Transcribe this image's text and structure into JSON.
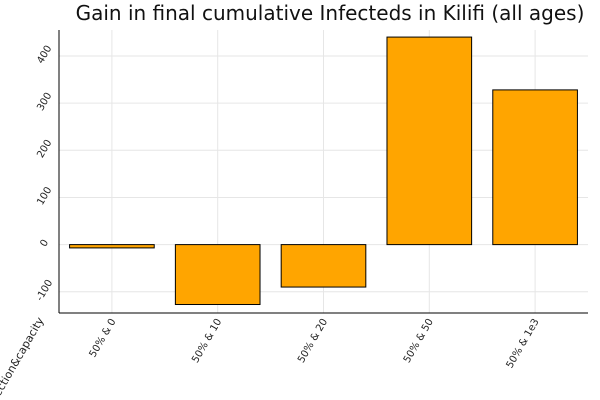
{
  "chart_data": {
    "type": "bar",
    "title": "Gain in final cumulative Infecteds in Kilifi (all ages)",
    "xlabel": "detection&capacity",
    "ylabel": "",
    "categories": [
      "50% & 0",
      "50% & 10",
      "50% & 20",
      "50% & 50",
      "50% & 1e3"
    ],
    "values": [
      -7,
      -127,
      -90,
      440,
      328
    ],
    "ylim": [
      -145,
      455
    ],
    "yticks": [
      -100,
      0,
      100,
      200,
      300,
      400
    ],
    "grid": true,
    "legend": "none",
    "bar_color": "#FFA500"
  }
}
